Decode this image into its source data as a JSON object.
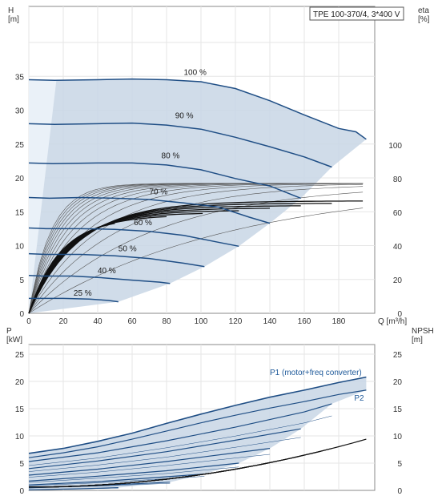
{
  "chart_data": [
    {
      "type": "line",
      "title": "TPE 100-370/4, 3*400 V",
      "xlabel": "Q [m³/h]",
      "ylabel_left": "H\n[m]",
      "ylabel_right": "eta\n[%]",
      "xlim": [
        0,
        200
      ],
      "ylim_left": [
        0,
        40
      ],
      "ylim_right": [
        0,
        146
      ],
      "x_ticks": [
        "0",
        "20",
        "40",
        "60",
        "80",
        "100",
        "120",
        "140",
        "160",
        "180"
      ],
      "y_left_ticks": [
        "0",
        "5",
        "10",
        "15",
        "20",
        "25",
        "30",
        "35"
      ],
      "y_right_ticks": [
        "0",
        "20",
        "40",
        "60",
        "80",
        "100"
      ],
      "grid": true,
      "colors": {
        "curve": "#1f4e85",
        "envelope": "#c8d6e5",
        "eta": "#111111"
      },
      "series": [
        {
          "name": "100 %",
          "x": [
            0,
            15,
            40,
            60,
            80,
            100,
            120,
            140,
            160,
            180,
            190,
            196
          ],
          "y": [
            34.5,
            34.4,
            34.5,
            34.6,
            34.5,
            34.2,
            33.2,
            31.4,
            29.3,
            27.3,
            26.8,
            25.7
          ]
        },
        {
          "name": "90 %",
          "x": [
            0,
            15,
            40,
            60,
            80,
            100,
            120,
            140,
            160,
            176
          ],
          "y": [
            28.0,
            27.9,
            28.0,
            28.1,
            27.8,
            27.2,
            26.0,
            24.6,
            23.1,
            21.6
          ]
        },
        {
          "name": "80 %",
          "x": [
            0,
            14,
            40,
            60,
            80,
            100,
            120,
            140,
            158
          ],
          "y": [
            22.2,
            22.1,
            22.2,
            22.2,
            21.9,
            21.2,
            19.9,
            18.8,
            17.0
          ]
        },
        {
          "name": "70 %",
          "x": [
            0,
            12,
            30,
            50,
            70,
            90,
            110,
            128,
            140
          ],
          "y": [
            17.1,
            17.0,
            17.1,
            17.0,
            16.8,
            16.3,
            15.7,
            14.2,
            13.3
          ]
        },
        {
          "name": "60 %",
          "x": [
            0,
            10,
            30,
            50,
            70,
            90,
            110,
            122
          ],
          "y": [
            12.6,
            12.5,
            12.5,
            12.4,
            12.1,
            11.5,
            10.5,
            9.9
          ]
        },
        {
          "name": "50 %",
          "x": [
            0,
            10,
            30,
            50,
            70,
            90,
            102
          ],
          "y": [
            8.8,
            8.7,
            8.7,
            8.5,
            8.1,
            7.4,
            6.9
          ]
        },
        {
          "name": "40 %",
          "x": [
            0,
            8,
            25,
            40,
            60,
            76,
            82
          ],
          "y": [
            5.6,
            5.5,
            5.5,
            5.3,
            4.9,
            4.6,
            4.4
          ]
        },
        {
          "name": "25 %",
          "x": [
            0,
            8,
            20,
            35,
            46,
            52
          ],
          "y": [
            2.2,
            2.2,
            2.2,
            2.1,
            1.9,
            1.7
          ]
        }
      ]
    },
    {
      "type": "line",
      "xlabel": "",
      "ylabel_left": "P\n[kW]",
      "ylabel_right": "NPSH\n[m]",
      "xlim": [
        0,
        200
      ],
      "ylim": [
        0,
        28
      ],
      "y_left_ticks": [
        "0",
        "5",
        "10",
        "15",
        "20",
        "25"
      ],
      "y_right_ticks": [
        "0",
        "5",
        "10",
        "15",
        "20",
        "25"
      ],
      "grid": true,
      "colors": {
        "curve": "#1f4e85",
        "envelope": "#c8d6e5",
        "npsh": "#111111"
      },
      "series": [
        {
          "name": "P1 (motor+freq converter)",
          "x": [
            0,
            20,
            40,
            60,
            80,
            100,
            120,
            140,
            160,
            180,
            196
          ],
          "y": [
            6.8,
            7.7,
            9.0,
            10.5,
            12.3,
            14.0,
            15.6,
            17.1,
            18.4,
            19.8,
            20.8
          ]
        },
        {
          "name": "P2",
          "x": [
            0,
            20,
            40,
            60,
            80,
            100,
            120,
            140,
            160,
            180,
            196
          ],
          "y": [
            6.0,
            6.9,
            8.0,
            9.4,
            10.9,
            12.4,
            13.8,
            15.1,
            16.3,
            17.6,
            18.4
          ]
        },
        {
          "name": "",
          "x": [
            0,
            40,
            80,
            120,
            160,
            176
          ],
          "y": [
            5.3,
            6.9,
            9.1,
            11.6,
            14.4,
            15.9
          ]
        },
        {
          "name": "",
          "x": [
            0,
            40,
            80,
            120,
            158
          ],
          "y": [
            4.0,
            5.4,
            7.1,
            9.2,
            11.3
          ]
        },
        {
          "name": "",
          "x": [
            0,
            40,
            80,
            120,
            140
          ],
          "y": [
            2.8,
            3.9,
            5.3,
            6.9,
            7.7
          ]
        },
        {
          "name": "",
          "x": [
            0,
            40,
            80,
            122
          ],
          "y": [
            1.7,
            2.6,
            3.6,
            5.0
          ]
        },
        {
          "name": "",
          "x": [
            0,
            40,
            80,
            102
          ],
          "y": [
            1.0,
            1.6,
            2.5,
            3.0
          ]
        },
        {
          "name": "",
          "x": [
            0,
            40,
            82
          ],
          "y": [
            0.5,
            0.9,
            1.5
          ]
        },
        {
          "name": "",
          "x": [
            0,
            30,
            52
          ],
          "y": [
            0.1,
            0.3,
            0.5
          ]
        }
      ]
    }
  ]
}
